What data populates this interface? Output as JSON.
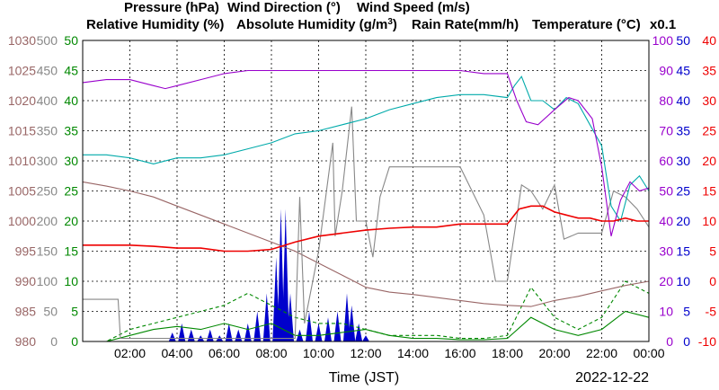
{
  "chart_data": {
    "type": "line",
    "date": "2022-12-22",
    "xlabel": "Time (JST)",
    "x_ticks": [
      "02:00",
      "04:00",
      "06:00",
      "08:00",
      "10:00",
      "12:00",
      "14:00",
      "16:00",
      "18:00",
      "20:00",
      "22:00",
      "00:00"
    ],
    "x_range": [
      0,
      24
    ],
    "x_unit": "hours",
    "grid": true,
    "axes": {
      "pressure": {
        "label": "Pressure (hPa)",
        "color": "#996666",
        "range": [
          980,
          1030
        ],
        "ticks": [
          "980",
          "985",
          "990",
          "995",
          "1000",
          "1005",
          "1010",
          "1015",
          "1020",
          "1025",
          "1030"
        ]
      },
      "wind_dir": {
        "label": "Wind Direction (°)",
        "color": "#888888",
        "range": [
          0,
          500
        ],
        "ticks": [
          "0",
          "50",
          "100",
          "150",
          "200",
          "250",
          "300",
          "350",
          "400",
          "450",
          "500"
        ]
      },
      "wind_speed": {
        "label": "Wind Speed (m/s)",
        "color": "#008800",
        "range": [
          0,
          50
        ],
        "ticks": [
          "0",
          "5",
          "10",
          "15",
          "20",
          "25",
          "30",
          "35",
          "40",
          "45",
          "50"
        ]
      },
      "humidity": {
        "label": "Relative Humidity (%)",
        "color": "#9900cc",
        "range": [
          0,
          100
        ],
        "ticks": [
          "0",
          "10",
          "20",
          "30",
          "40",
          "50",
          "60",
          "70",
          "80",
          "90",
          "100"
        ]
      },
      "rain": {
        "label": "Rain Rate(mm/h)",
        "color": "#0000cc",
        "range": [
          0,
          50
        ],
        "ticks": [
          "0",
          "5",
          "10",
          "15",
          "20",
          "25",
          "30",
          "35",
          "40",
          "45",
          "50"
        ]
      },
      "temperature": {
        "label": "Temperature (°C)",
        "color": "#ee0000",
        "range": [
          -10,
          40
        ],
        "ticks": [
          "-10",
          "-5",
          "0",
          "5",
          "10",
          "15",
          "20",
          "25",
          "30",
          "35",
          "40"
        ]
      },
      "abs_humidity_scale": {
        "label": "x0.1",
        "color": "#00aaaa"
      }
    },
    "abs_humidity_label_main": "Absolute Humidity (g/m",
    "abs_humidity_label_sup": "3",
    "abs_humidity_label_end": ")",
    "series": [
      {
        "name": "Pressure",
        "axis": "pressure",
        "style": "solid",
        "x": [
          0,
          1,
          2,
          3,
          4,
          5,
          6,
          7,
          8,
          9,
          10,
          11,
          12,
          13,
          14,
          15,
          16,
          17,
          18,
          19,
          20,
          21,
          22,
          23,
          24
        ],
        "y": [
          1006.5,
          1005.8,
          1005,
          1004,
          1002.5,
          1001,
          999.5,
          998,
          996.5,
          995,
          993,
          991,
          989,
          988.2,
          987.8,
          987.3,
          986.8,
          986.3,
          986,
          985.8,
          986.8,
          987.5,
          988.4,
          989.3,
          990
        ]
      },
      {
        "name": "Wind Direction",
        "axis": "wind_dir",
        "style": "solid",
        "x": [
          0,
          1,
          1.5,
          1.6,
          2,
          3,
          4,
          5,
          6,
          7,
          8,
          8.5,
          9,
          9.2,
          9.4,
          10,
          10.6,
          10.7,
          11,
          11.4,
          11.6,
          12,
          12.3,
          12.6,
          13,
          13.4,
          14,
          15,
          16,
          17,
          17.5,
          18,
          18.6,
          19,
          19.5,
          20,
          20.4,
          21,
          22,
          22.5,
          23,
          23.5,
          24
        ],
        "y": [
          70,
          70,
          70,
          5,
          5,
          5,
          5,
          5,
          5,
          5,
          5,
          5,
          5,
          240,
          30,
          150,
          330,
          175,
          250,
          390,
          200,
          200,
          140,
          240,
          290,
          290,
          290,
          290,
          290,
          210,
          100,
          100,
          260,
          250,
          220,
          260,
          170,
          180,
          180,
          250,
          240,
          220,
          190
        ]
      },
      {
        "name": "Wind Speed",
        "axis": "wind_speed",
        "style": "solid",
        "x": [
          0,
          1,
          2,
          3,
          4,
          5,
          6,
          7,
          8,
          9,
          10,
          11,
          12,
          13,
          14,
          15,
          16,
          17,
          18,
          19,
          20,
          21,
          22,
          23,
          24
        ],
        "y": [
          0,
          0,
          1,
          2,
          2.5,
          2,
          3,
          2,
          3,
          1,
          1,
          1.5,
          2,
          1,
          0.5,
          0.5,
          0.3,
          0.3,
          0.5,
          4,
          2,
          1,
          2,
          5,
          4
        ]
      },
      {
        "name": "Wind Gust",
        "axis": "wind_speed",
        "style": "dashed",
        "x": [
          0,
          1,
          2,
          3,
          4,
          5,
          6,
          7,
          8,
          9,
          10,
          11,
          12,
          13,
          14,
          15,
          16,
          17,
          18,
          19,
          20,
          21,
          22,
          23,
          24
        ],
        "y": [
          0,
          0,
          2,
          3,
          4,
          5,
          6,
          8,
          6,
          4,
          3,
          3,
          2,
          1,
          1,
          1,
          0.5,
          0.5,
          1,
          9,
          4,
          2,
          4,
          10,
          8
        ]
      },
      {
        "name": "Relative Humidity",
        "axis": "humidity",
        "style": "solid",
        "x": [
          0,
          1,
          2,
          3,
          3.5,
          4,
          5,
          6,
          7,
          8,
          9,
          10,
          11,
          12,
          13,
          14,
          15,
          16,
          17,
          18,
          18.4,
          18.8,
          19.3,
          20,
          20.6,
          21,
          21.6,
          22,
          22.4,
          22.8,
          23.2,
          23.6,
          24
        ],
        "y": [
          86,
          87,
          87,
          85,
          84,
          85,
          87,
          89,
          90,
          90,
          90,
          90,
          90,
          90,
          90,
          90,
          90,
          90,
          89,
          89,
          80,
          73,
          72,
          77,
          81,
          80,
          74,
          58,
          35,
          47,
          53,
          50,
          51
        ]
      },
      {
        "name": "Absolute Humidity",
        "axis": "humidity",
        "style": "solid",
        "x": [
          0,
          1,
          2,
          3,
          4,
          5,
          6,
          7,
          8,
          9,
          10,
          11,
          12,
          13,
          14,
          15,
          16,
          17,
          18,
          18.3,
          18.6,
          19,
          19.5,
          20,
          20.5,
          21,
          21.5,
          22,
          22.4,
          22.8,
          23.2,
          23.6,
          24
        ],
        "y": [
          62,
          62,
          61,
          59,
          61,
          61,
          62,
          64,
          66,
          69,
          70,
          72,
          74,
          77,
          79,
          81,
          82,
          82,
          81,
          85,
          88,
          80,
          80,
          77,
          81,
          79,
          72,
          65,
          45,
          40,
          52,
          55,
          50
        ]
      },
      {
        "name": "Temperature",
        "axis": "temperature",
        "style": "solid",
        "x": [
          0,
          1,
          2,
          3,
          4,
          5,
          6,
          7,
          8,
          9,
          10,
          11,
          12,
          13,
          14,
          15,
          16,
          17,
          18,
          18.5,
          19,
          19.5,
          20,
          20.5,
          21,
          21.5,
          22,
          22.5,
          23,
          23.5,
          24
        ],
        "y": [
          6,
          6,
          6,
          5.8,
          5.5,
          5.5,
          5,
          5,
          5.3,
          6.5,
          7.5,
          8,
          8.5,
          8.8,
          9,
          9,
          9.5,
          9.5,
          9.5,
          12,
          12.5,
          12.5,
          11.5,
          11,
          10.5,
          10.5,
          10,
          10,
          10.5,
          10,
          10
        ]
      },
      {
        "name": "Rain Rate",
        "axis": "rain",
        "style": "bars",
        "x": [
          3.8,
          4.2,
          4.6,
          5,
          5.4,
          5.8,
          6.2,
          6.6,
          7,
          7.4,
          7.8,
          8.2,
          8.4,
          8.6,
          8.8,
          9.2,
          9.6,
          10,
          10.4,
          10.8,
          11.2,
          11.4,
          11.7,
          12
        ],
        "y": [
          1.5,
          3,
          2,
          1,
          2,
          1,
          3,
          2,
          3,
          5,
          8,
          14,
          22,
          22,
          8,
          2,
          5,
          3,
          4,
          5,
          8,
          6,
          3,
          1
        ]
      }
    ]
  }
}
